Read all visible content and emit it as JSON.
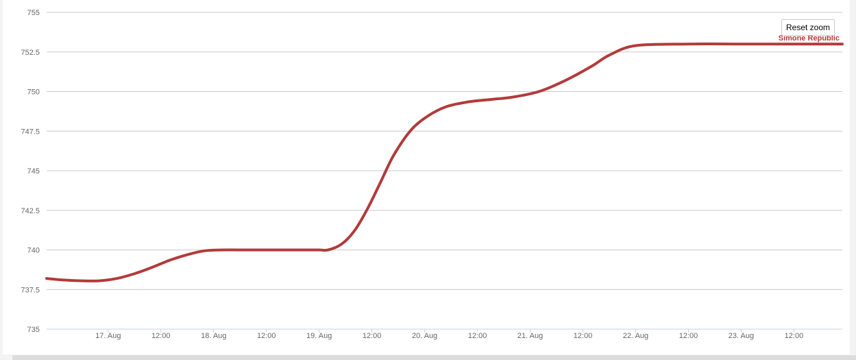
{
  "toolbar": {
    "reset_zoom_label": "Reset zoom"
  },
  "colors": {
    "series": "#b33a3a",
    "grid": "#c8c8c8",
    "axis": "#c0d0e0",
    "label": "#666666"
  },
  "chart_data": {
    "type": "line",
    "title": "",
    "xlabel": "",
    "ylabel": "",
    "ylim": [
      735,
      755
    ],
    "xlim": [
      "2024-08-16 10:00",
      "2024-08-23 23:00"
    ],
    "y_ticks": [
      "735",
      "737.5",
      "740",
      "742.5",
      "745",
      "747.5",
      "750",
      "752.5",
      "755"
    ],
    "x_ticks": [
      {
        "t": "2024-08-17 00:00",
        "label": "17. Aug"
      },
      {
        "t": "2024-08-17 12:00",
        "label": "12:00"
      },
      {
        "t": "2024-08-18 00:00",
        "label": "18. Aug"
      },
      {
        "t": "2024-08-18 12:00",
        "label": "12:00"
      },
      {
        "t": "2024-08-19 00:00",
        "label": "19. Aug"
      },
      {
        "t": "2024-08-19 12:00",
        "label": "12:00"
      },
      {
        "t": "2024-08-20 00:00",
        "label": "20. Aug"
      },
      {
        "t": "2024-08-20 12:00",
        "label": "12:00"
      },
      {
        "t": "2024-08-21 00:00",
        "label": "21. Aug"
      },
      {
        "t": "2024-08-21 12:00",
        "label": "12:00"
      },
      {
        "t": "2024-08-22 00:00",
        "label": "22. Aug"
      },
      {
        "t": "2024-08-22 12:00",
        "label": "12:00"
      },
      {
        "t": "2024-08-23 00:00",
        "label": "23. Aug"
      },
      {
        "t": "2024-08-23 12:00",
        "label": "12:00"
      }
    ],
    "grid": true,
    "legend": "top-right",
    "series": [
      {
        "name": "Simone Republic",
        "color": "#b33a3a",
        "x": [
          "2024-08-16 10:00",
          "2024-08-16 14:00",
          "2024-08-16 18:00",
          "2024-08-16 22:00",
          "2024-08-17 02:00",
          "2024-08-17 06:00",
          "2024-08-17 10:00",
          "2024-08-17 14:00",
          "2024-08-17 18:00",
          "2024-08-17 22:00",
          "2024-08-18 02:00",
          "2024-08-18 08:00",
          "2024-08-18 14:00",
          "2024-08-18 20:00",
          "2024-08-19 00:00",
          "2024-08-19 02:00",
          "2024-08-19 05:00",
          "2024-08-19 08:00",
          "2024-08-19 11:00",
          "2024-08-19 14:00",
          "2024-08-19 17:00",
          "2024-08-19 21:00",
          "2024-08-20 01:00",
          "2024-08-20 05:00",
          "2024-08-20 10:00",
          "2024-08-20 15:00",
          "2024-08-20 20:00",
          "2024-08-21 02:00",
          "2024-08-21 08:00",
          "2024-08-21 14:00",
          "2024-08-21 18:00",
          "2024-08-22 00:00",
          "2024-08-22 12:00",
          "2024-08-23 00:00",
          "2024-08-23 12:00",
          "2024-08-23 23:00"
        ],
        "values": [
          738.2,
          738.1,
          738.05,
          738.05,
          738.2,
          738.5,
          738.9,
          739.35,
          739.7,
          739.95,
          740.0,
          740.0,
          740.0,
          740.0,
          740.0,
          740.0,
          740.35,
          741.2,
          742.6,
          744.3,
          746.0,
          747.6,
          748.5,
          749.05,
          749.35,
          749.5,
          749.65,
          750.0,
          750.7,
          751.6,
          752.3,
          752.9,
          753.0,
          753.0,
          753.0,
          753.0
        ]
      }
    ]
  }
}
